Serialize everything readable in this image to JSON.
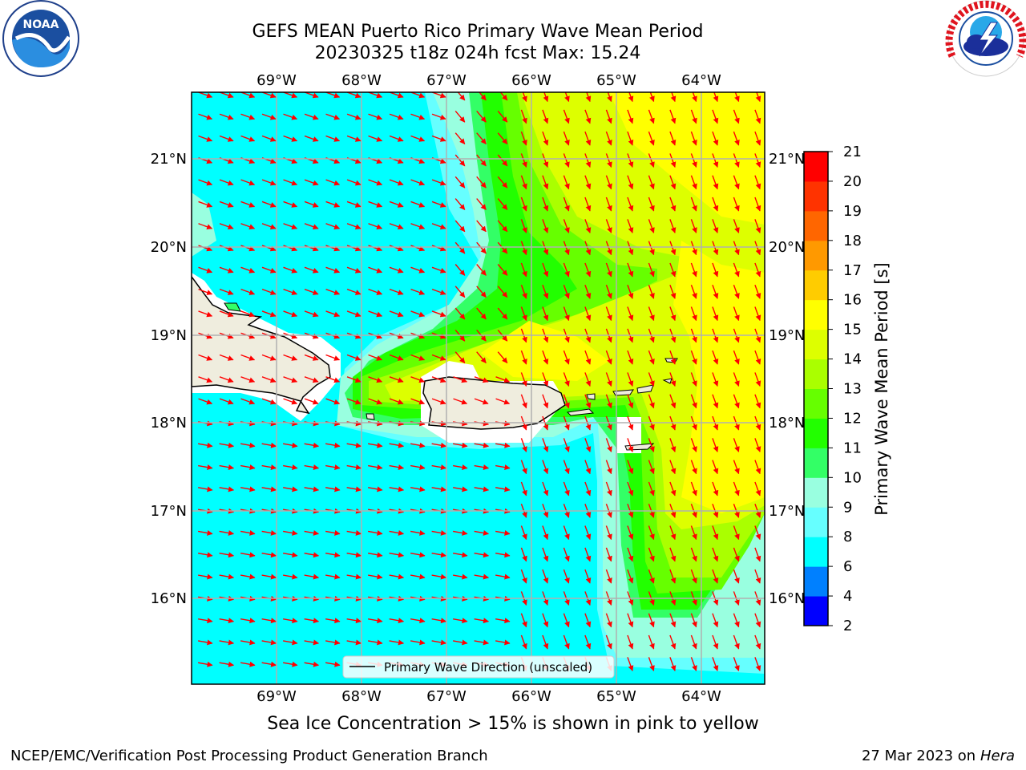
{
  "header": {
    "title": "GEFS MEAN Puerto Rico Primary Wave Mean Period",
    "subtitle": "20230325 t18z 024h fcst   Max: 15.24",
    "noaa_logo_text": "NOAA",
    "noaa_ring_text": "NATIONAL OCEANIC AND ATMOSPHERIC ADMINISTRATION · U.S. DEPARTMENT OF COMMERCE",
    "nws_ring_text": "NATIONAL WEATHER SERVICE"
  },
  "map": {
    "lon_labels": [
      "69°W",
      "68°W",
      "67°W",
      "66°W",
      "65°W",
      "64°W"
    ],
    "lat_labels": [
      "21°N",
      "20°N",
      "19°N",
      "18°N",
      "17°N",
      "16°N"
    ],
    "legend_label": "Primary Wave Direction (unscaled)",
    "arrow_color": "#ff0000",
    "land_color": "#efedde"
  },
  "colorbar": {
    "label": "Primary Wave Mean Period [s]",
    "ticks": [
      "2",
      "4",
      "6",
      "8",
      "9",
      "10",
      "11",
      "12",
      "13",
      "14",
      "15",
      "16",
      "17",
      "18",
      "19",
      "20",
      "21"
    ],
    "colors": [
      "#0000ff",
      "#0080ff",
      "#00ffff",
      "#66ffff",
      "#99ffe0",
      "#33ff66",
      "#22ff00",
      "#66ff00",
      "#aaff00",
      "#ddff00",
      "#ffff00",
      "#ffcc00",
      "#ff9900",
      "#ff6600",
      "#ff3300",
      "#ff0000"
    ]
  },
  "note": "Sea Ice Concentration > 15% is shown in pink to yellow",
  "footer": {
    "left": "NCEP/EMC/Verification Post Processing Product Generation Branch",
    "right_prefix": "27 Mar 2023 on",
    "right_host": "Hera"
  }
}
